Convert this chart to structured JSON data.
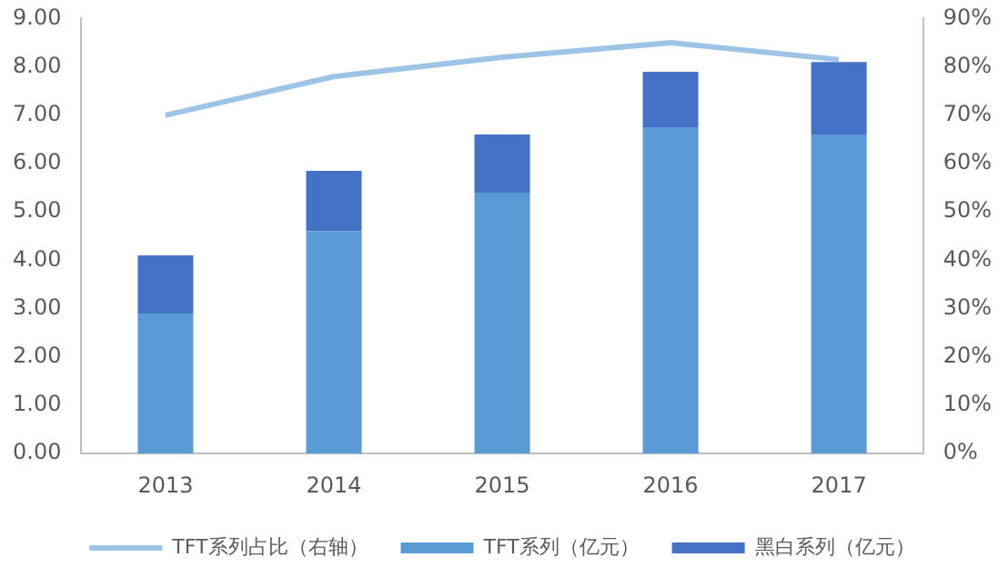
{
  "chart_data": {
    "type": "bar",
    "stacked": true,
    "categories": [
      "2013",
      "2014",
      "2015",
      "2016",
      "2017"
    ],
    "series": [
      {
        "name": "TFT系列（亿元）",
        "color": "#5b9bd5",
        "values": [
          2.9,
          4.6,
          5.4,
          6.75,
          6.6
        ]
      },
      {
        "name": "黑白系列（亿元）",
        "color": "#4472c4",
        "values": [
          1.2,
          1.25,
          1.2,
          1.15,
          1.5
        ]
      },
      {
        "name": "TFT系列占比（右轴）",
        "type": "line",
        "axis": "y2",
        "color": "#9dc3e6",
        "marker": "none",
        "values": [
          70,
          78,
          82,
          85,
          81.5
        ]
      }
    ],
    "ylim": [
      0,
      9
    ],
    "yticks": [
      {
        "value": 0,
        "label": "0.00"
      },
      {
        "value": 1,
        "label": "1.00"
      },
      {
        "value": 2,
        "label": "2.00"
      },
      {
        "value": 3,
        "label": "3.00"
      },
      {
        "value": 4,
        "label": "4.00"
      },
      {
        "value": 5,
        "label": "5.00"
      },
      {
        "value": 6,
        "label": "6.00"
      },
      {
        "value": 7,
        "label": "7.00"
      },
      {
        "value": 8,
        "label": "8.00"
      },
      {
        "value": 9,
        "label": "9.00"
      }
    ],
    "y2lim": [
      0,
      90
    ],
    "y2ticks": [
      {
        "value": 0,
        "label": "0%"
      },
      {
        "value": 10,
        "label": "10%"
      },
      {
        "value": 20,
        "label": "20%"
      },
      {
        "value": 30,
        "label": "30%"
      },
      {
        "value": 40,
        "label": "40%"
      },
      {
        "value": 50,
        "label": "50%"
      },
      {
        "value": 60,
        "label": "60%"
      },
      {
        "value": 70,
        "label": "70%"
      },
      {
        "value": 80,
        "label": "80%"
      },
      {
        "value": 90,
        "label": "90%"
      }
    ],
    "grid": false,
    "legend": "bottom"
  }
}
